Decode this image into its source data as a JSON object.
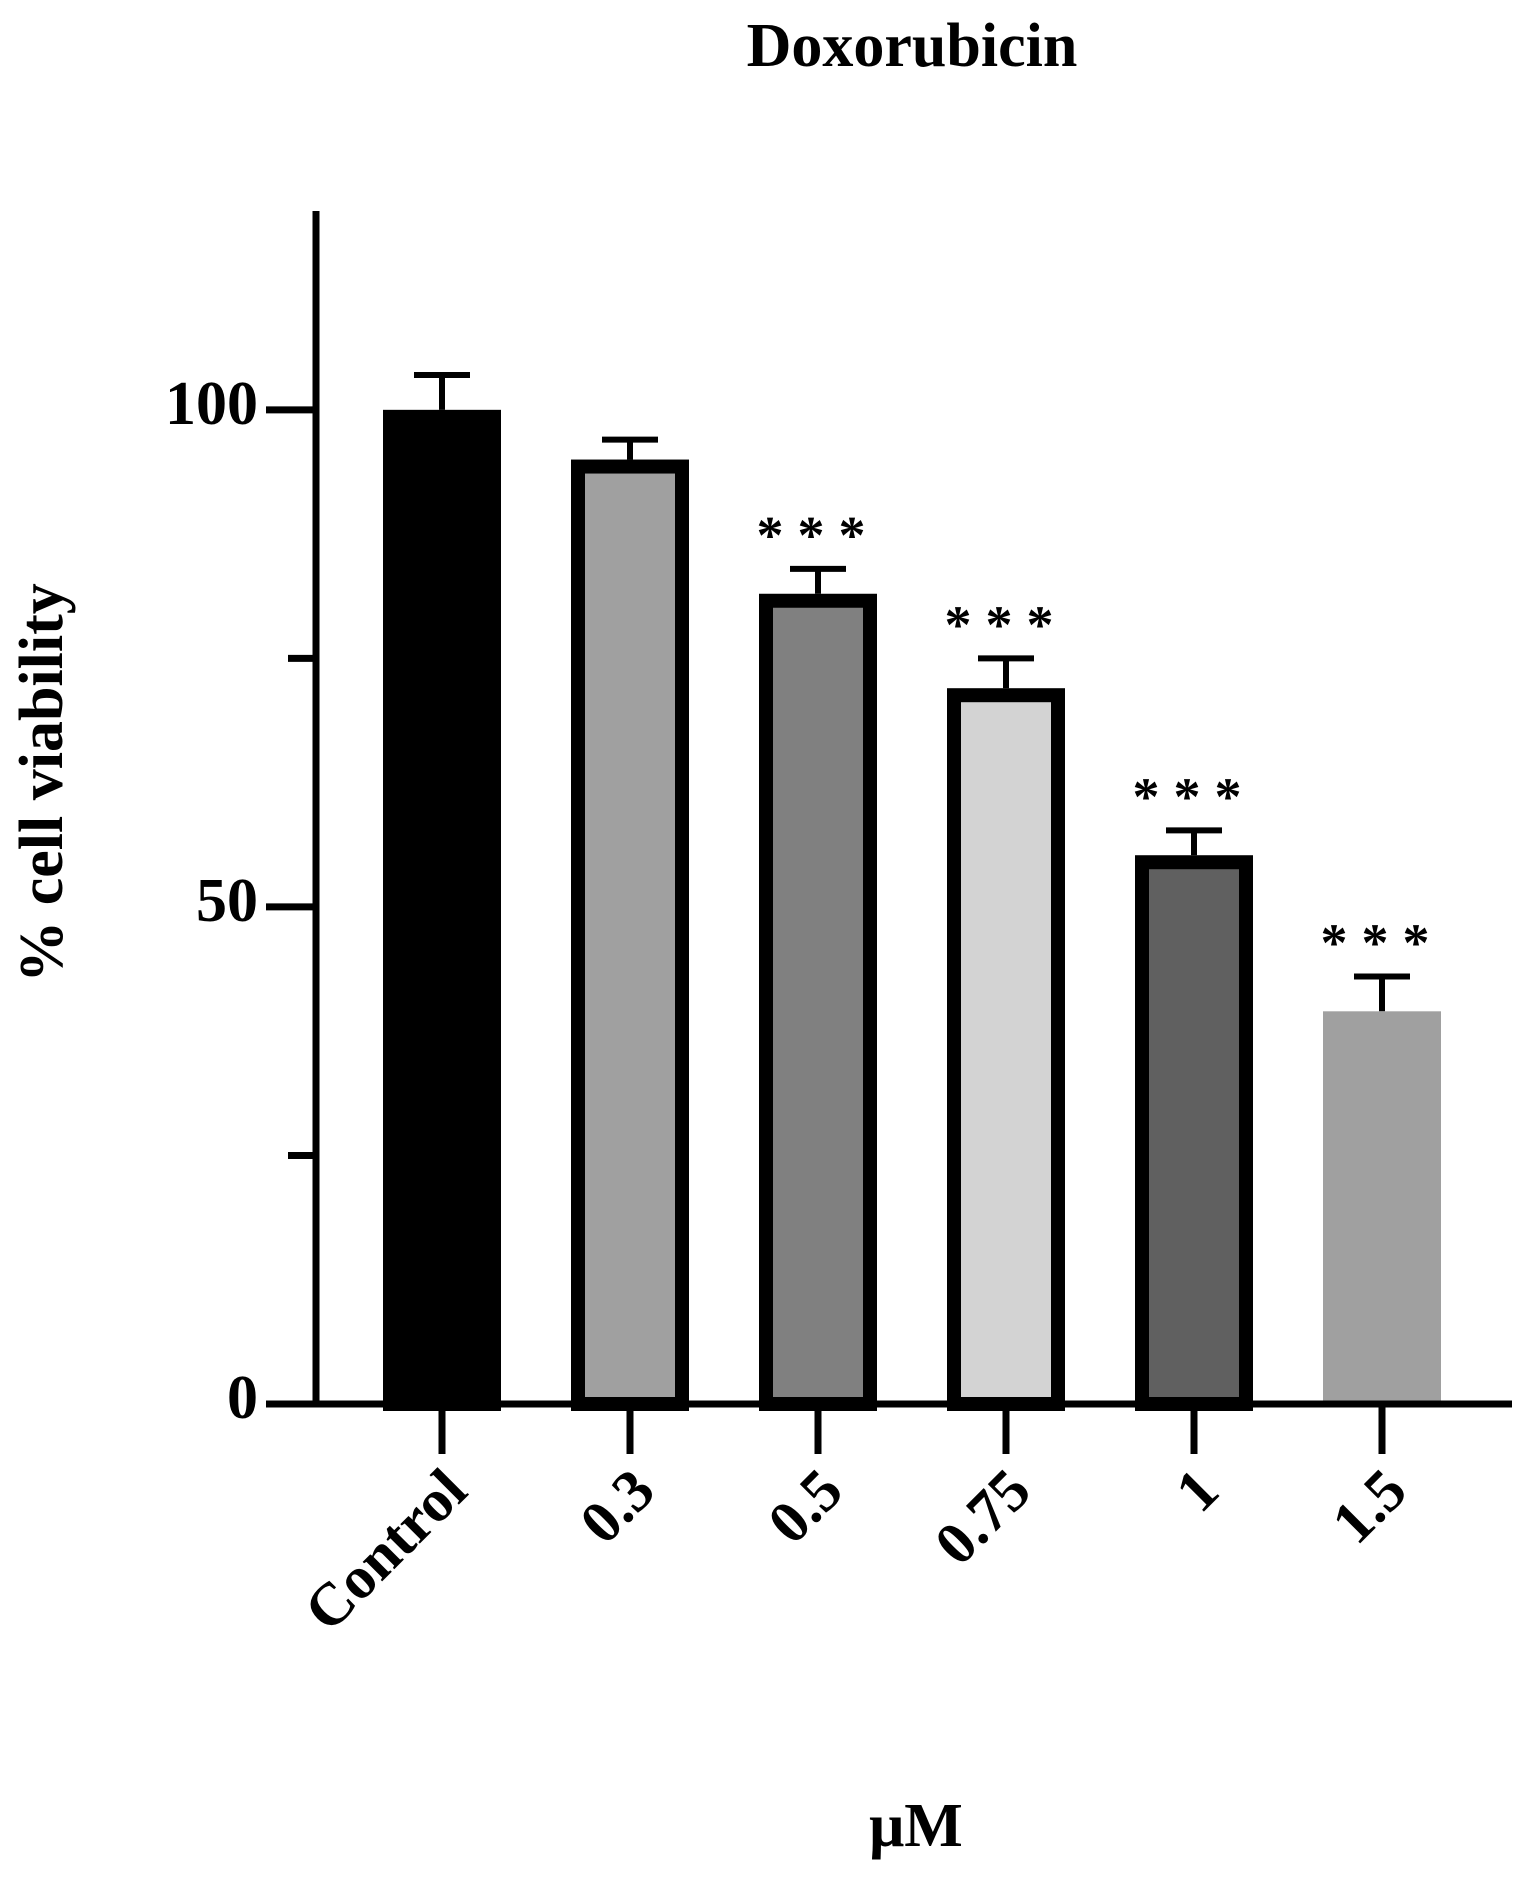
{
  "chart_data": {
    "type": "bar",
    "title": "Doxorubicin",
    "x_label": "μM",
    "y_label": "% cell viability",
    "categories": [
      "Control",
      "0.3",
      "0.5",
      "0.75",
      "1",
      "1.5"
    ],
    "values": [
      100,
      95,
      81.5,
      72,
      55.2,
      39.5
    ],
    "errors": [
      3.5,
      2,
      2.5,
      3,
      2.5,
      3.5
    ],
    "annotations": [
      null,
      null,
      "***",
      "***",
      "***",
      "***"
    ],
    "colors": [
      "#000000",
      "#a0a0a0",
      "#808080",
      "#d3d3d3",
      "#606060",
      "#a0a0a0"
    ],
    "edgecolors": [
      "#000000",
      "#000000",
      "#000000",
      "#000000",
      "#000000",
      null
    ],
    "ylim": [
      0,
      120
    ],
    "yticks": [
      0,
      50,
      100
    ],
    "minor_yticks": [
      25,
      75
    ]
  }
}
